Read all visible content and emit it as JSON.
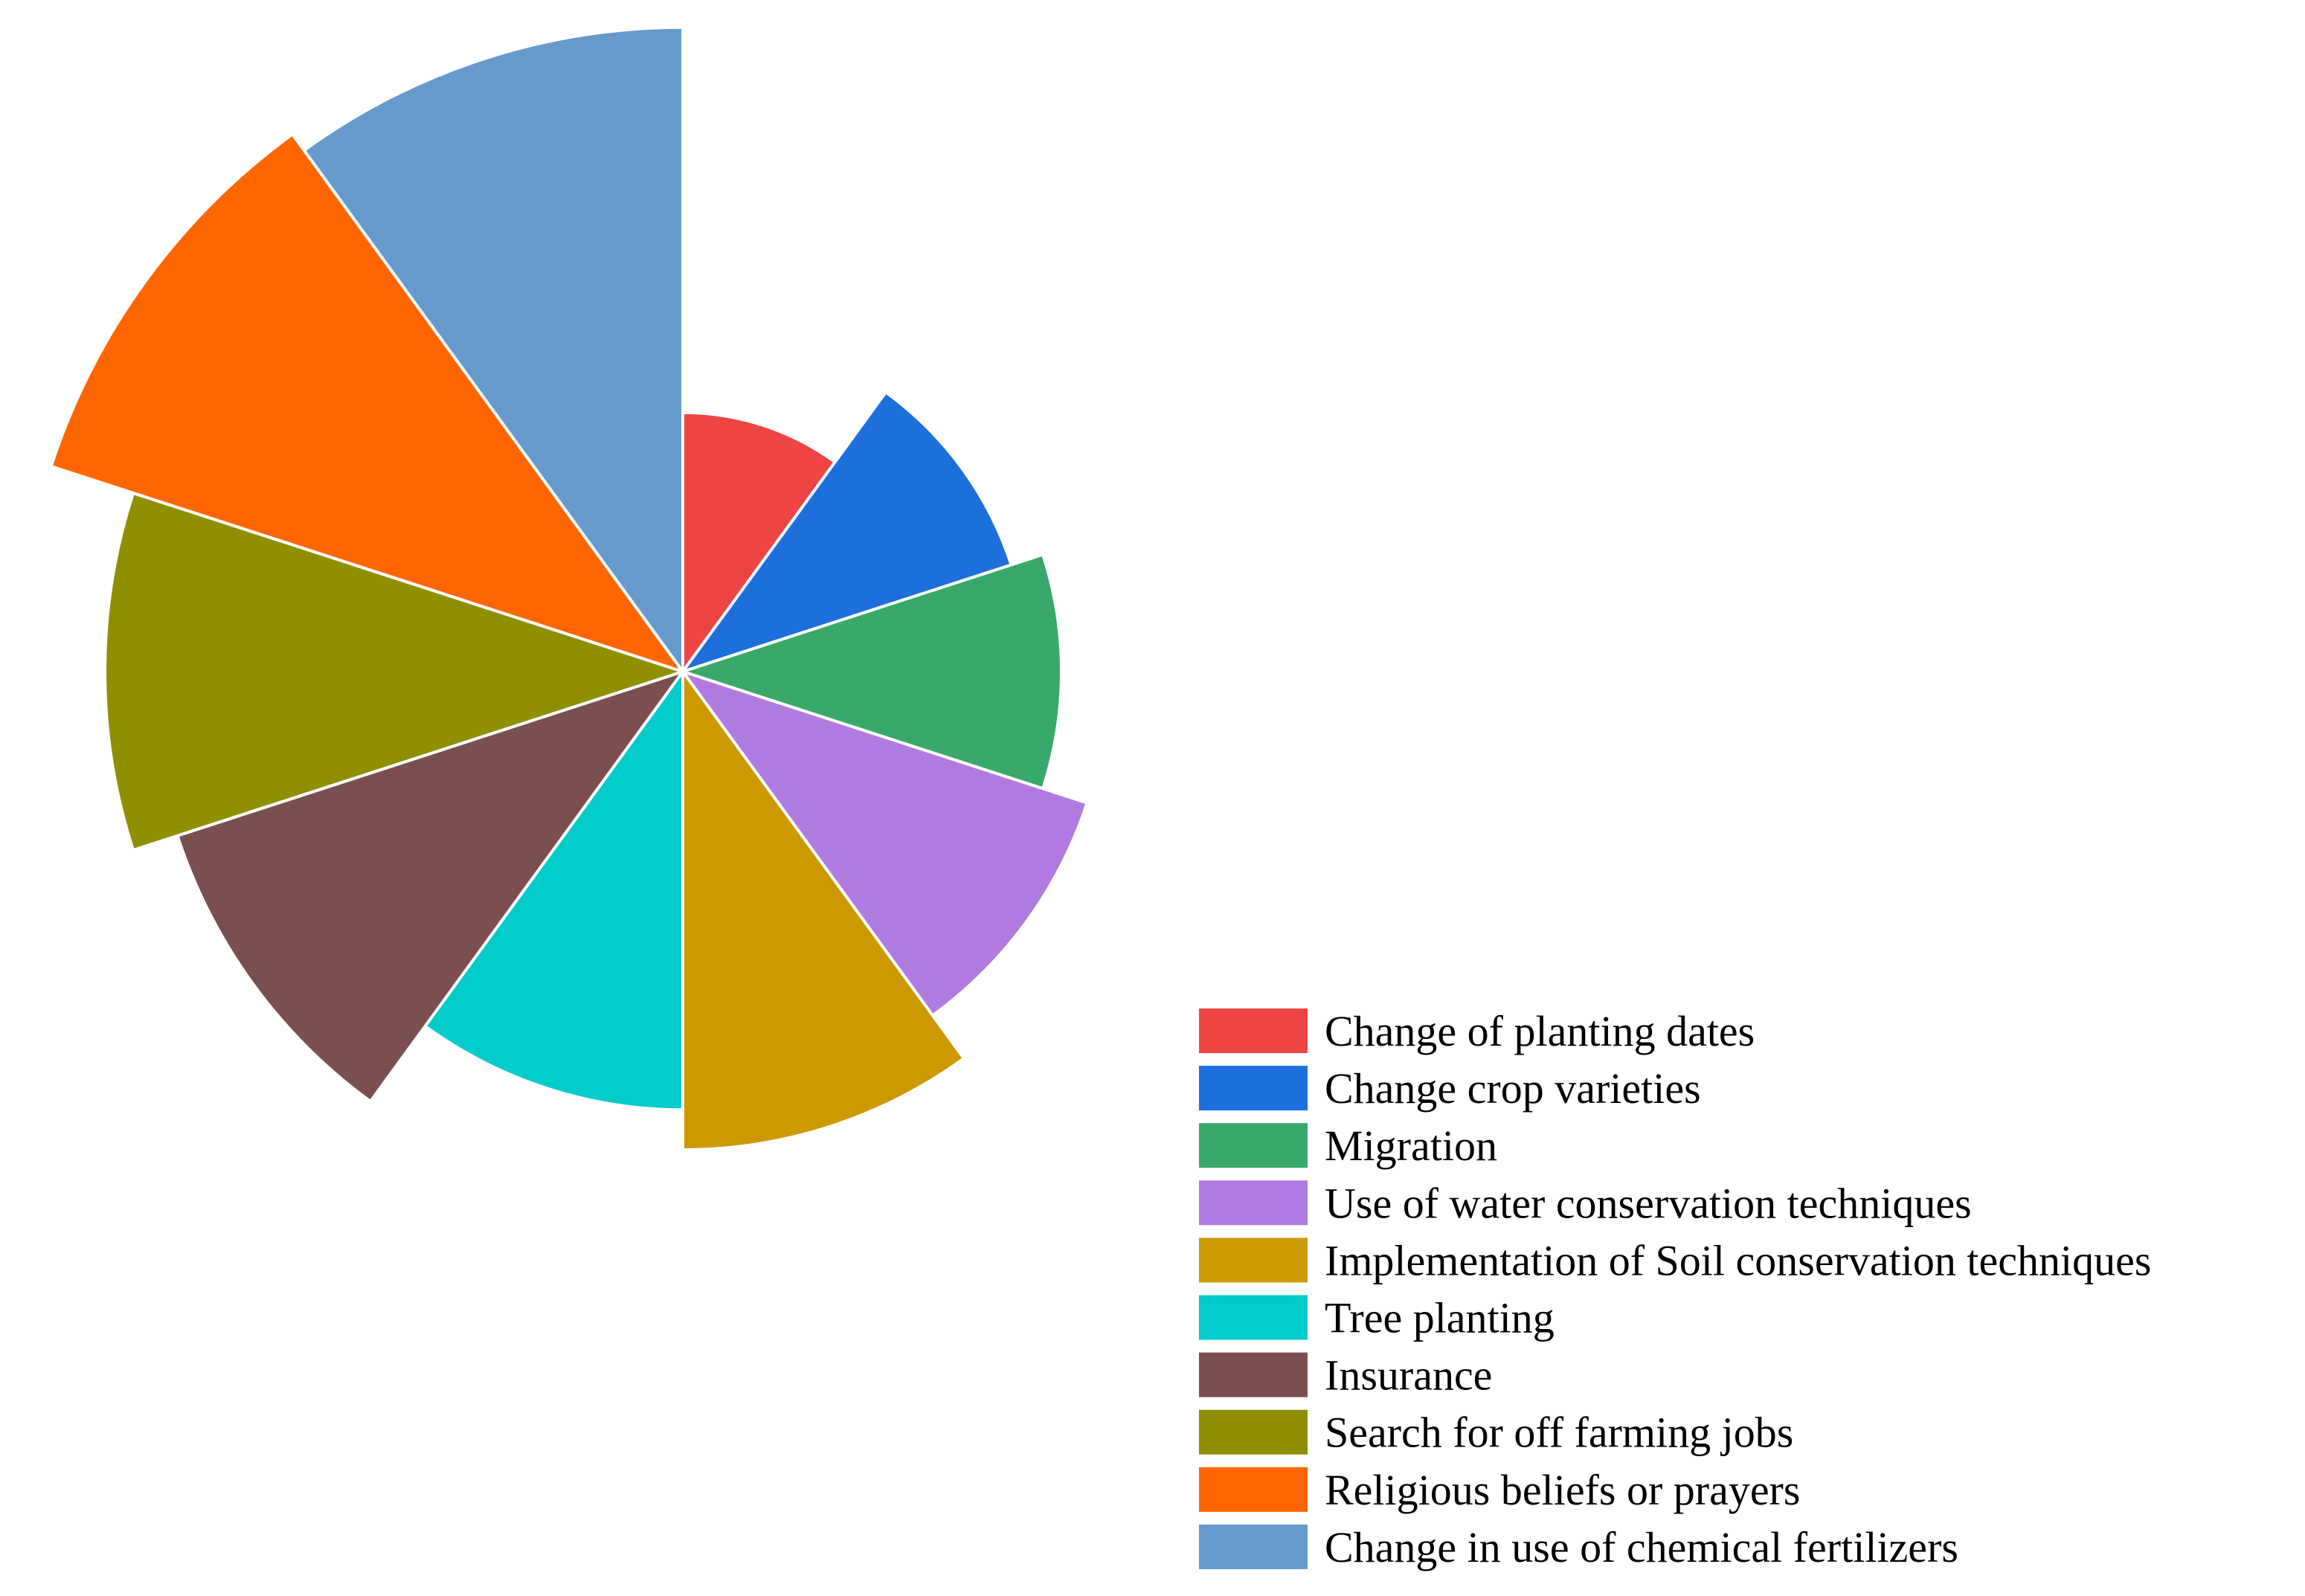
{
  "chart_data": {
    "type": "pie",
    "variant": "polar-area",
    "legend_position": "bottom-right",
    "series": [
      {
        "name": "Change of planting dates",
        "angle_share": 0.1,
        "radius": 0.39,
        "color": "#EF4444"
      },
      {
        "name": "Change crop varieties",
        "angle_share": 0.1,
        "radius": 0.52,
        "color": "#1D6FDC"
      },
      {
        "name": "Migration",
        "angle_share": 0.1,
        "radius": 0.57,
        "color": "#38A96A"
      },
      {
        "name": "Use of water conservation techniques",
        "angle_share": 0.1,
        "radius": 0.64,
        "color": "#B07BE0"
      },
      {
        "name": "Implementation of Soil conservation techniques",
        "angle_share": 0.1,
        "radius": 0.72,
        "color": "#CC9A00"
      },
      {
        "name": "Tree planting",
        "angle_share": 0.1,
        "radius": 0.66,
        "color": "#00CCCC"
      },
      {
        "name": "Insurance",
        "angle_share": 0.1,
        "radius": 0.8,
        "color": "#7B4F4F"
      },
      {
        "name": "Search for off farming jobs",
        "angle_share": 0.1,
        "radius": 0.87,
        "color": "#8F8F00"
      },
      {
        "name": "Religious beliefs or prayers",
        "angle_share": 0.1,
        "radius": 1.0,
        "color": "#FF6600"
      },
      {
        "name": "Change in use of chemical fertilizers",
        "angle_share": 0.1,
        "radius": 0.97,
        "color": "#6699CC"
      }
    ]
  }
}
